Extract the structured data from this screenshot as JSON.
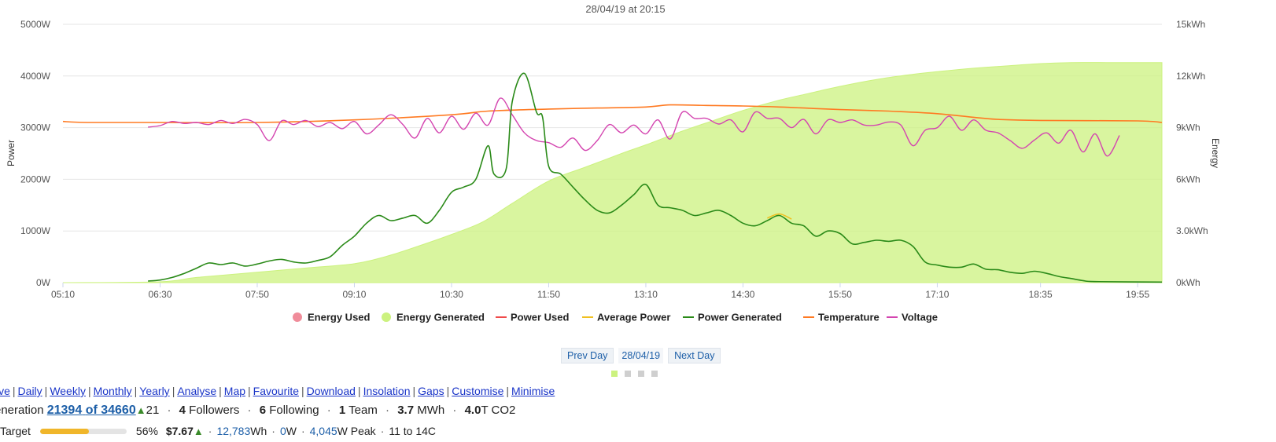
{
  "chart_data": {
    "type": "line",
    "title": "28/04/19 at 20:15",
    "ylabel_left": "Power",
    "ylabel_right": "Energy",
    "x_ticks": [
      "05:10",
      "06:30",
      "07:50",
      "09:10",
      "10:30",
      "11:50",
      "13:10",
      "14:30",
      "15:50",
      "17:10",
      "18:35",
      "19:55"
    ],
    "y_left_ticks": [
      "0W",
      "1000W",
      "2000W",
      "3000W",
      "4000W",
      "5000W"
    ],
    "y_right_ticks": [
      "0kWh",
      "3.0kWh",
      "6kWh",
      "9kWh",
      "12kWh",
      "15kWh"
    ],
    "ylim_left": [
      0,
      5000
    ],
    "ylim_right": [
      0,
      15
    ],
    "xlim": [
      "05:10",
      "20:15"
    ],
    "grid": true,
    "legend_position": "bottom",
    "legend": [
      {
        "name": "Energy Used",
        "color": "#f08c9a",
        "marker": "circle"
      },
      {
        "name": "Energy Generated",
        "color": "#ccf27f",
        "marker": "circle"
      },
      {
        "name": "Power Used",
        "color": "#f04a4a",
        "marker": "line"
      },
      {
        "name": "Average Power",
        "color": "#f0c020",
        "marker": "line"
      },
      {
        "name": "Power Generated",
        "color": "#2a8a18",
        "marker": "line"
      },
      {
        "name": "Temperature",
        "color": "#ff7a22",
        "marker": "line"
      },
      {
        "name": "Voltage",
        "color": "#d445b0",
        "marker": "line"
      }
    ],
    "series": [
      {
        "name": "Energy Generated",
        "axis": "right",
        "kind": "area",
        "color": "#ccf27f",
        "points": [
          [
            "05:10",
            0
          ],
          [
            "06:30",
            0.05
          ],
          [
            "07:00",
            0.3
          ],
          [
            "07:50",
            0.6
          ],
          [
            "08:30",
            0.85
          ],
          [
            "09:10",
            1.1
          ],
          [
            "09:40",
            1.6
          ],
          [
            "10:10",
            2.3
          ],
          [
            "10:30",
            2.8
          ],
          [
            "10:55",
            3.5
          ],
          [
            "11:20",
            4.6
          ],
          [
            "11:50",
            5.9
          ],
          [
            "12:20",
            6.7
          ],
          [
            "12:50",
            7.5
          ],
          [
            "13:10",
            8.0
          ],
          [
            "13:40",
            8.8
          ],
          [
            "14:05",
            9.4
          ],
          [
            "14:30",
            10.0
          ],
          [
            "15:00",
            10.6
          ],
          [
            "15:25",
            11.0
          ],
          [
            "15:50",
            11.4
          ],
          [
            "16:20",
            11.8
          ],
          [
            "16:50",
            12.1
          ],
          [
            "17:10",
            12.25
          ],
          [
            "17:40",
            12.45
          ],
          [
            "18:10",
            12.6
          ],
          [
            "18:35",
            12.72
          ],
          [
            "19:00",
            12.78
          ],
          [
            "19:30",
            12.78
          ],
          [
            "20:15",
            12.78
          ]
        ]
      },
      {
        "name": "Temperature",
        "axis": "left",
        "kind": "line",
        "color": "#ff7a22",
        "points": [
          [
            "05:10",
            3120
          ],
          [
            "05:30",
            3100
          ],
          [
            "06:30",
            3100
          ],
          [
            "07:50",
            3100
          ],
          [
            "09:10",
            3150
          ],
          [
            "10:30",
            3250
          ],
          [
            "11:00",
            3320
          ],
          [
            "11:50",
            3360
          ],
          [
            "12:30",
            3380
          ],
          [
            "13:10",
            3400
          ],
          [
            "13:30",
            3440
          ],
          [
            "14:00",
            3430
          ],
          [
            "14:30",
            3420
          ],
          [
            "15:00",
            3400
          ],
          [
            "15:30",
            3370
          ],
          [
            "15:50",
            3350
          ],
          [
            "16:30",
            3320
          ],
          [
            "17:10",
            3270
          ],
          [
            "17:40",
            3200
          ],
          [
            "18:00",
            3160
          ],
          [
            "18:35",
            3140
          ],
          [
            "19:55",
            3130
          ],
          [
            "20:15",
            3100
          ]
        ]
      },
      {
        "name": "Voltage",
        "axis": "left",
        "kind": "line",
        "color": "#d445b0",
        "points": [
          [
            "06:20",
            3010
          ],
          [
            "06:30",
            3040
          ],
          [
            "06:40",
            3120
          ],
          [
            "06:50",
            3080
          ],
          [
            "07:00",
            3100
          ],
          [
            "07:10",
            3060
          ],
          [
            "07:20",
            3140
          ],
          [
            "07:30",
            3080
          ],
          [
            "07:40",
            3160
          ],
          [
            "07:50",
            3060
          ],
          [
            "08:00",
            2750
          ],
          [
            "08:10",
            3130
          ],
          [
            "08:20",
            3060
          ],
          [
            "08:30",
            3140
          ],
          [
            "08:40",
            3020
          ],
          [
            "08:50",
            3100
          ],
          [
            "09:00",
            2980
          ],
          [
            "09:10",
            3120
          ],
          [
            "09:20",
            2880
          ],
          [
            "09:30",
            3050
          ],
          [
            "09:40",
            3250
          ],
          [
            "09:50",
            3060
          ],
          [
            "10:00",
            2800
          ],
          [
            "10:10",
            3180
          ],
          [
            "10:20",
            2900
          ],
          [
            "10:30",
            3220
          ],
          [
            "10:40",
            2970
          ],
          [
            "10:50",
            3280
          ],
          [
            "11:00",
            3050
          ],
          [
            "11:10",
            3570
          ],
          [
            "11:20",
            3250
          ],
          [
            "11:30",
            2900
          ],
          [
            "11:40",
            2750
          ],
          [
            "11:50",
            2710
          ],
          [
            "12:00",
            2620
          ],
          [
            "12:10",
            2800
          ],
          [
            "12:20",
            2560
          ],
          [
            "12:30",
            2750
          ],
          [
            "12:40",
            3060
          ],
          [
            "12:50",
            2900
          ],
          [
            "13:00",
            3050
          ],
          [
            "13:10",
            2880
          ],
          [
            "13:20",
            3150
          ],
          [
            "13:30",
            2780
          ],
          [
            "13:40",
            3300
          ],
          [
            "13:50",
            3180
          ],
          [
            "14:00",
            3180
          ],
          [
            "14:10",
            3070
          ],
          [
            "14:20",
            3150
          ],
          [
            "14:30",
            2920
          ],
          [
            "14:40",
            3300
          ],
          [
            "14:50",
            3180
          ],
          [
            "15:00",
            3180
          ],
          [
            "15:10",
            3000
          ],
          [
            "15:20",
            3160
          ],
          [
            "15:30",
            2880
          ],
          [
            "15:40",
            3150
          ],
          [
            "15:50",
            3100
          ],
          [
            "16:00",
            3150
          ],
          [
            "16:10",
            3050
          ],
          [
            "16:20",
            3050
          ],
          [
            "16:30",
            3110
          ],
          [
            "16:40",
            3050
          ],
          [
            "16:50",
            2650
          ],
          [
            "17:00",
            2950
          ],
          [
            "17:10",
            3000
          ],
          [
            "17:20",
            3220
          ],
          [
            "17:30",
            2950
          ],
          [
            "17:40",
            3150
          ],
          [
            "17:50",
            2950
          ],
          [
            "18:00",
            2900
          ],
          [
            "18:10",
            2750
          ],
          [
            "18:20",
            2600
          ],
          [
            "18:30",
            2760
          ],
          [
            "18:40",
            2900
          ],
          [
            "18:50",
            2700
          ],
          [
            "19:00",
            2950
          ],
          [
            "19:10",
            2530
          ],
          [
            "19:20",
            2880
          ],
          [
            "19:30",
            2450
          ],
          [
            "19:40",
            2850
          ]
        ]
      },
      {
        "name": "Power Generated",
        "axis": "left",
        "kind": "line",
        "color": "#2a8a18",
        "points": [
          [
            "06:20",
            30
          ],
          [
            "06:30",
            50
          ],
          [
            "06:40",
            100
          ],
          [
            "06:50",
            180
          ],
          [
            "07:00",
            280
          ],
          [
            "07:10",
            380
          ],
          [
            "07:20",
            350
          ],
          [
            "07:30",
            380
          ],
          [
            "07:40",
            320
          ],
          [
            "07:50",
            360
          ],
          [
            "08:00",
            420
          ],
          [
            "08:10",
            450
          ],
          [
            "08:20",
            400
          ],
          [
            "08:30",
            380
          ],
          [
            "08:40",
            430
          ],
          [
            "08:50",
            500
          ],
          [
            "09:00",
            720
          ],
          [
            "09:10",
            900
          ],
          [
            "09:20",
            1150
          ],
          [
            "09:30",
            1300
          ],
          [
            "09:40",
            1200
          ],
          [
            "09:50",
            1250
          ],
          [
            "10:00",
            1300
          ],
          [
            "10:10",
            1150
          ],
          [
            "10:20",
            1400
          ],
          [
            "10:30",
            1750
          ],
          [
            "10:40",
            1850
          ],
          [
            "10:50",
            2000
          ],
          [
            "11:00",
            2650
          ],
          [
            "11:05",
            2100
          ],
          [
            "11:15",
            2200
          ],
          [
            "11:20",
            3500
          ],
          [
            "11:30",
            4050
          ],
          [
            "11:40",
            3300
          ],
          [
            "11:45",
            3200
          ],
          [
            "11:50",
            2250
          ],
          [
            "12:00",
            2100
          ],
          [
            "12:10",
            1850
          ],
          [
            "12:20",
            1600
          ],
          [
            "12:30",
            1400
          ],
          [
            "12:40",
            1350
          ],
          [
            "12:50",
            1500
          ],
          [
            "13:00",
            1700
          ],
          [
            "13:10",
            1900
          ],
          [
            "13:20",
            1500
          ],
          [
            "13:30",
            1450
          ],
          [
            "13:40",
            1400
          ],
          [
            "13:50",
            1300
          ],
          [
            "14:00",
            1350
          ],
          [
            "14:10",
            1400
          ],
          [
            "14:20",
            1300
          ],
          [
            "14:30",
            1150
          ],
          [
            "14:40",
            1100
          ],
          [
            "14:50",
            1200
          ],
          [
            "15:00",
            1300
          ],
          [
            "15:10",
            1150
          ],
          [
            "15:20",
            1100
          ],
          [
            "15:30",
            900
          ],
          [
            "15:40",
            1000
          ],
          [
            "15:50",
            950
          ],
          [
            "16:00",
            750
          ],
          [
            "16:10",
            780
          ],
          [
            "16:20",
            820
          ],
          [
            "16:30",
            800
          ],
          [
            "16:40",
            820
          ],
          [
            "16:50",
            700
          ],
          [
            "17:00",
            400
          ],
          [
            "17:10",
            340
          ],
          [
            "17:20",
            300
          ],
          [
            "17:30",
            300
          ],
          [
            "17:40",
            360
          ],
          [
            "17:50",
            260
          ],
          [
            "18:00",
            250
          ],
          [
            "18:10",
            200
          ],
          [
            "18:20",
            180
          ],
          [
            "18:30",
            220
          ],
          [
            "18:40",
            180
          ],
          [
            "18:50",
            120
          ],
          [
            "19:00",
            80
          ],
          [
            "19:10",
            40
          ],
          [
            "19:20",
            20
          ],
          [
            "20:15",
            10
          ]
        ]
      },
      {
        "name": "Average Power",
        "axis": "left",
        "kind": "line",
        "color": "#f0c020",
        "points": [
          [
            "14:50",
            1250
          ],
          [
            "15:00",
            1330
          ],
          [
            "15:10",
            1230
          ]
        ]
      }
    ]
  },
  "daynav": {
    "prev": "Prev Day",
    "date": "28/04/19",
    "next": "Next Day"
  },
  "links": [
    "ive",
    "Daily",
    "Weekly",
    "Monthly",
    "Yearly",
    "Analyse",
    "Map",
    "Favourite",
    "Download",
    "Insolation",
    "Gaps",
    "Customise",
    "Minimise"
  ],
  "generation": {
    "label": "eneration",
    "rank": "21394",
    "of_total": "of 34660",
    "up_glyph": "▲",
    "rank_change": "21",
    "followers_n": "4",
    "followers": "Followers",
    "following_n": "6",
    "following": "Following",
    "team_n": "1",
    "team": "Team",
    "mwh": "3.7",
    "mwh_unit": "MWh",
    "co2": "4.0",
    "co2_unit": "T CO2"
  },
  "target": {
    "label": "Target",
    "progress": 0.56,
    "percent": "56%",
    "money": "$7.67",
    "up_glyph": "▲",
    "wh": "12,783",
    "wh_unit": "Wh",
    "w": "0",
    "w_unit": "W",
    "peak": "4,045",
    "peak_unit": "W Peak",
    "temp_range": "11 to 14C"
  },
  "dot_sep": "·",
  "pipe_sep": "|"
}
